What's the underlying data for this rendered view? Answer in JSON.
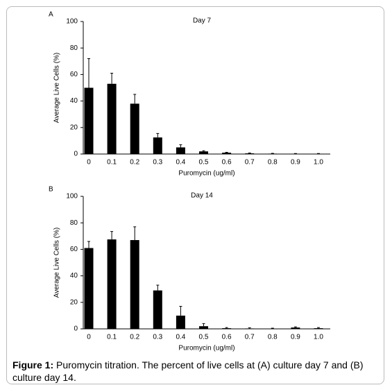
{
  "chart_data": [
    {
      "type": "bar",
      "panel": "A",
      "title": "Day 7",
      "xlabel": "Puromycin (ug/ml)",
      "ylabel": "Average Live Cells (%)",
      "categories": [
        "0",
        "0.1",
        "0.2",
        "0.3",
        "0.4",
        "0.5",
        "0.6",
        "0.7",
        "0.8",
        "0.9",
        "1.0"
      ],
      "values": [
        50,
        53,
        38,
        12.5,
        5,
        2,
        1,
        0.5,
        0.3,
        0.2,
        0.2
      ],
      "errors": [
        22,
        8,
        7,
        3,
        2,
        0.5,
        0.3,
        0.3,
        0.2,
        0.2,
        0.2
      ],
      "color": "#000000",
      "ylim": [
        0,
        100
      ],
      "yticks": [
        0,
        20,
        40,
        60,
        80,
        100
      ]
    },
    {
      "type": "bar",
      "panel": "B",
      "title": "Day 14",
      "xlabel": "Puromycin (ug/ml)",
      "ylabel": "Average Live Cells (%)",
      "categories": [
        "0",
        "0.1",
        "0.2",
        "0.3",
        "0.4",
        "0.5",
        "0.6",
        "0.7",
        "0.8",
        "0.9",
        "1.0"
      ],
      "values": [
        61,
        67.5,
        67,
        29,
        10,
        2,
        0.5,
        0.3,
        0.2,
        1,
        0.5
      ],
      "errors": [
        5,
        6,
        10,
        4,
        7,
        2,
        0.5,
        0.5,
        0.3,
        0.5,
        0.5
      ],
      "color": "#000000",
      "ylim": [
        0,
        100
      ],
      "yticks": [
        0,
        20,
        40,
        60,
        80,
        100
      ]
    }
  ],
  "caption": {
    "label": "Figure 1:",
    "text": "Puromycin titration. The percent of live cells at (A) culture day 7 and (B) culture day 14."
  }
}
